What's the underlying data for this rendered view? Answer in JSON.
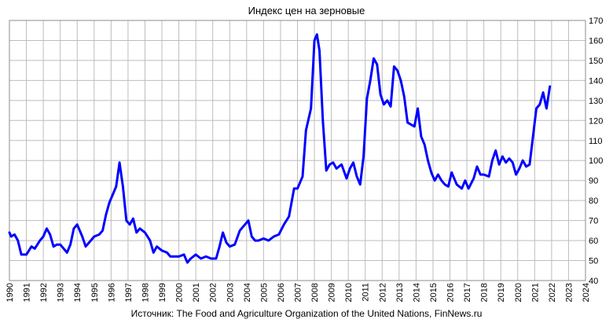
{
  "chart_data": {
    "type": "line",
    "title": "Индекс цен на зерновые",
    "source": "Источник: The Food and Agriculture Organization of the United Nations, FinNews.ru",
    "xlabel": "",
    "ylabel": "",
    "xlim": [
      1990,
      2024
    ],
    "ylim": [
      40,
      170
    ],
    "x_ticks": [
      1990,
      1991,
      1992,
      1993,
      1994,
      1995,
      1996,
      1997,
      1998,
      1999,
      2000,
      2001,
      2002,
      2003,
      2004,
      2005,
      2006,
      2007,
      2008,
      2009,
      2010,
      2011,
      2012,
      2013,
      2014,
      2015,
      2016,
      2017,
      2018,
      2019,
      2020,
      2021,
      2022,
      2023,
      2024
    ],
    "y_ticks": [
      40,
      50,
      60,
      70,
      80,
      90,
      100,
      110,
      120,
      130,
      140,
      150,
      160,
      170
    ],
    "y_axis_side": "right",
    "grid": "horizontal and vertical",
    "series_color": "#0000ff",
    "series": [
      {
        "x": [
          1990.0,
          1990.1,
          1990.3,
          1990.5,
          1990.7,
          1991.0,
          1991.3,
          1991.5,
          1991.8,
          1992.0,
          1992.2,
          1992.4,
          1992.6,
          1992.8,
          1993.0,
          1993.2,
          1993.4,
          1993.6,
          1993.8,
          1994.0,
          1994.3,
          1994.5,
          1994.8,
          1995.0,
          1995.3,
          1995.5,
          1995.7,
          1995.9,
          1996.1,
          1996.3,
          1996.5,
          1996.7,
          1996.9,
          1997.1,
          1997.3,
          1997.5,
          1997.7,
          1998.0,
          1998.3,
          1998.5,
          1998.7,
          1999.0,
          1999.3,
          1999.5,
          1999.8,
          2000.0,
          2000.3,
          2000.5,
          2000.7,
          2001.0,
          2001.3,
          2001.6,
          2001.9,
          2002.2,
          2002.4,
          2002.6,
          2002.8,
          2003.0,
          2003.3,
          2003.6,
          2003.9,
          2004.1,
          2004.3,
          2004.5,
          2004.7,
          2005.0,
          2005.3,
          2005.6,
          2005.9,
          2006.2,
          2006.5,
          2006.8,
          2007.0,
          2007.3,
          2007.5,
          2007.8,
          2008.0,
          2008.15,
          2008.3,
          2008.5,
          2008.7,
          2008.9,
          2009.1,
          2009.3,
          2009.6,
          2009.9,
          2010.1,
          2010.3,
          2010.5,
          2010.7,
          2010.9,
          2011.1,
          2011.3,
          2011.5,
          2011.7,
          2011.9,
          2012.1,
          2012.3,
          2012.5,
          2012.7,
          2012.9,
          2013.1,
          2013.3,
          2013.5,
          2013.7,
          2013.9,
          2014.1,
          2014.3,
          2014.5,
          2014.7,
          2014.9,
          2015.1,
          2015.3,
          2015.5,
          2015.7,
          2015.9,
          2016.1,
          2016.4,
          2016.7,
          2016.9,
          2017.1,
          2017.4,
          2017.6,
          2017.8,
          2018.0,
          2018.3,
          2018.5,
          2018.7,
          2018.9,
          2019.1,
          2019.3,
          2019.5,
          2019.7,
          2019.9,
          2020.1,
          2020.3,
          2020.5,
          2020.7,
          2020.9,
          2021.1,
          2021.3,
          2021.5,
          2021.7,
          2021.9
        ],
        "y": [
          64,
          62,
          63,
          60,
          53,
          53,
          57,
          56,
          60,
          62,
          66,
          63,
          57,
          58,
          58,
          56,
          54,
          58,
          66,
          68,
          62,
          57,
          60,
          62,
          63,
          65,
          73,
          79,
          83,
          87,
          99,
          87,
          70,
          68,
          71,
          64,
          66,
          64,
          60,
          54,
          57,
          55,
          54,
          52,
          52,
          52,
          53,
          49,
          51,
          53,
          51,
          52,
          51,
          51,
          57,
          64,
          59,
          57,
          58,
          65,
          68,
          70,
          62,
          60,
          60,
          61,
          60,
          62,
          63,
          68,
          72,
          86,
          86,
          92,
          115,
          126,
          160,
          163,
          155,
          120,
          95,
          98,
          99,
          96,
          98,
          91,
          96,
          99,
          92,
          88,
          102,
          131,
          140,
          151,
          148,
          133,
          128,
          130,
          127,
          147,
          145,
          140,
          132,
          119,
          118,
          117,
          126,
          112,
          108,
          100,
          94,
          90,
          93,
          90,
          88,
          87,
          94,
          88,
          86,
          90,
          86,
          91,
          97,
          93,
          93,
          92,
          100,
          105,
          98,
          102,
          99,
          101,
          99,
          93,
          96,
          100,
          97,
          98,
          112,
          126,
          128,
          134,
          126,
          137
        ]
      }
    ]
  }
}
